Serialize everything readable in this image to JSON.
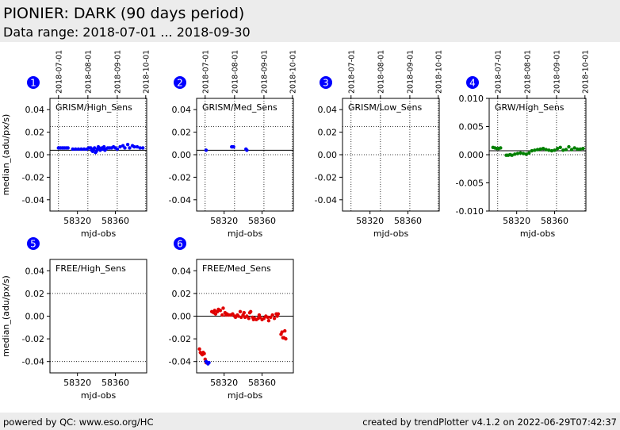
{
  "header": {
    "title": "PIONIER: DARK (90 days period)",
    "subtitle": "Data range: 2018-07-01 ... 2018-09-30"
  },
  "footer": {
    "left": "powered by QC: www.eso.org/HC",
    "right": "created by trendPlotter v4.1.2 on 2022-06-29T07:42:37"
  },
  "colors": {
    "blue": "#0000ff",
    "green": "#008000",
    "red": "#e00000",
    "badge": "#0000ff"
  },
  "chart_data": [
    {
      "id": 1,
      "type": "scatter",
      "label": "GRISM/High_Sens",
      "xlabel": "mjd-obs",
      "ylabel": "median_(adu/px/s)",
      "xlim": [
        58291,
        58393
      ],
      "ylim": [
        -0.05,
        0.05
      ],
      "yticks": [
        "0.04",
        "0.02",
        "0.00",
        "-0.02",
        "-0.04"
      ],
      "yticks_values": [
        0.04,
        0.02,
        0.0,
        -0.02,
        -0.04
      ],
      "xticks": [
        "58320",
        "58360"
      ],
      "xticks_values": [
        58320,
        58360
      ],
      "date_ticks": [
        "2018-07-01",
        "2018-08-01",
        "2018-09-01",
        "2018-10-01"
      ],
      "date_ticks_values": [
        58300,
        58331,
        58362,
        58392
      ],
      "ref_line": 0.004,
      "dotted_h": [
        0.025,
        0.0
      ],
      "series": [
        {
          "color": "blue",
          "points": [
            [
              58300,
              0.006
            ],
            [
              58302,
              0.006
            ],
            [
              58304,
              0.006
            ],
            [
              58306,
              0.006
            ],
            [
              58308,
              0.006
            ],
            [
              58310,
              0.006
            ],
            [
              58315,
              0.005
            ],
            [
              58318,
              0.005
            ],
            [
              58321,
              0.005
            ],
            [
              58324,
              0.005
            ],
            [
              58327,
              0.005
            ],
            [
              58330,
              0.005
            ],
            [
              58332,
              0.006
            ],
            [
              58334,
              0.006
            ],
            [
              58335,
              0.004
            ],
            [
              58336,
              0.003
            ],
            [
              58337,
              0.005
            ],
            [
              58338,
              0.006
            ],
            [
              58339,
              0.002
            ],
            [
              58340,
              0.003
            ],
            [
              58341,
              0.005
            ],
            [
              58342,
              0.007
            ],
            [
              58343,
              0.006
            ],
            [
              58344,
              0.004
            ],
            [
              58345,
              0.005
            ],
            [
              58346,
              0.006
            ],
            [
              58347,
              0.005
            ],
            [
              58348,
              0.007
            ],
            [
              58349,
              0.004
            ],
            [
              58350,
              0.005
            ],
            [
              58352,
              0.006
            ],
            [
              58354,
              0.006
            ],
            [
              58356,
              0.006
            ],
            [
              58358,
              0.007
            ],
            [
              58360,
              0.006
            ],
            [
              58362,
              0.005
            ],
            [
              58365,
              0.007
            ],
            [
              58368,
              0.008
            ],
            [
              58370,
              0.006
            ],
            [
              58373,
              0.009
            ],
            [
              58375,
              0.006
            ],
            [
              58378,
              0.008
            ],
            [
              58380,
              0.007
            ],
            [
              58383,
              0.007
            ],
            [
              58386,
              0.006
            ],
            [
              58389,
              0.006
            ]
          ]
        }
      ]
    },
    {
      "id": 2,
      "type": "scatter",
      "label": "GRISM/Med_Sens",
      "xlabel": "mjd-obs",
      "ylabel": "",
      "xlim": [
        58291,
        58393
      ],
      "ylim": [
        -0.05,
        0.05
      ],
      "yticks": [
        "0.04",
        "0.02",
        "0.00",
        "-0.02",
        "-0.04"
      ],
      "yticks_values": [
        0.04,
        0.02,
        0.0,
        -0.02,
        -0.04
      ],
      "xticks": [
        "58320",
        "58360"
      ],
      "xticks_values": [
        58320,
        58360
      ],
      "date_ticks": [
        "2018-07-01",
        "2018-08-01",
        "2018-09-01",
        "2018-10-01"
      ],
      "date_ticks_values": [
        58300,
        58331,
        58362,
        58392
      ],
      "ref_line": 0.004,
      "dotted_h": [
        0.025,
        0.0
      ],
      "series": [
        {
          "color": "blue",
          "points": [
            [
              58301,
              0.004
            ],
            [
              58328,
              0.007
            ],
            [
              58329,
              0.007
            ],
            [
              58330,
              0.007
            ],
            [
              58343,
              0.005
            ],
            [
              58344,
              0.004
            ]
          ]
        }
      ]
    },
    {
      "id": 3,
      "type": "scatter",
      "label": "GRISM/Low_Sens",
      "xlabel": "mjd-obs",
      "ylabel": "",
      "xlim": [
        58291,
        58393
      ],
      "ylim": [
        -0.05,
        0.05
      ],
      "yticks": [
        "0.04",
        "0.02",
        "0.00",
        "-0.02",
        "-0.04"
      ],
      "yticks_values": [
        0.04,
        0.02,
        0.0,
        -0.02,
        -0.04
      ],
      "xticks": [
        "58320",
        "58360"
      ],
      "xticks_values": [
        58320,
        58360
      ],
      "date_ticks": [
        "2018-07-01",
        "2018-08-01",
        "2018-09-01",
        "2018-10-01"
      ],
      "date_ticks_values": [
        58300,
        58331,
        58362,
        58392
      ],
      "ref_line": null,
      "dotted_h": [
        0.025,
        0.0
      ],
      "series": []
    },
    {
      "id": 4,
      "type": "scatter",
      "label": "GRW/High_Sens",
      "xlabel": "mjd-obs",
      "ylabel": "",
      "xlim": [
        58291,
        58393
      ],
      "ylim": [
        -0.01,
        0.01
      ],
      "yticks": [
        "0.010",
        "0.005",
        "0.000",
        "-0.005",
        "-0.010"
      ],
      "yticks_values": [
        0.01,
        0.005,
        0.0,
        -0.005,
        -0.01
      ],
      "xticks": [
        "58320",
        "58360"
      ],
      "xticks_values": [
        58320,
        58360
      ],
      "date_ticks": [
        "2018-07-01",
        "2018-08-01",
        "2018-09-01",
        "2018-10-01"
      ],
      "date_ticks_values": [
        58300,
        58331,
        58362,
        58392
      ],
      "ref_line": 0.0007,
      "dotted_h": [
        0.0
      ],
      "series": [
        {
          "color": "green",
          "points": [
            [
              58295,
              0.0013
            ],
            [
              58297,
              0.0012
            ],
            [
              58299,
              0.0011
            ],
            [
              58301,
              0.0011
            ],
            [
              58303,
              0.0012
            ],
            [
              58309,
              -0.0001
            ],
            [
              58311,
              -0.0001
            ],
            [
              58313,
              0.0
            ],
            [
              58315,
              -0.0001
            ],
            [
              58318,
              0.0001
            ],
            [
              58321,
              0.0002
            ],
            [
              58324,
              0.0003
            ],
            [
              58327,
              0.0002
            ],
            [
              58330,
              0.0001
            ],
            [
              58333,
              0.0003
            ],
            [
              58336,
              0.0007
            ],
            [
              58339,
              0.0008
            ],
            [
              58342,
              0.0009
            ],
            [
              58345,
              0.001
            ],
            [
              58348,
              0.0011
            ],
            [
              58351,
              0.0009
            ],
            [
              58354,
              0.0008
            ],
            [
              58357,
              0.0007
            ],
            [
              58360,
              0.0008
            ],
            [
              58363,
              0.0011
            ],
            [
              58366,
              0.0013
            ],
            [
              58369,
              0.0008
            ],
            [
              58372,
              0.0009
            ],
            [
              58375,
              0.0014
            ],
            [
              58378,
              0.0009
            ],
            [
              58381,
              0.0012
            ],
            [
              58384,
              0.001
            ],
            [
              58387,
              0.001
            ],
            [
              58390,
              0.0011
            ]
          ]
        }
      ]
    },
    {
      "id": 5,
      "type": "scatter",
      "label": "FREE/High_Sens",
      "xlabel": "mjd-obs",
      "ylabel": "median_(adu/px/s)",
      "xlim": [
        58291,
        58393
      ],
      "ylim": [
        -0.05,
        0.05
      ],
      "yticks": [
        "0.04",
        "0.02",
        "0.00",
        "-0.02",
        "-0.04"
      ],
      "yticks_values": [
        0.04,
        0.02,
        0.0,
        -0.02,
        -0.04
      ],
      "xticks": [
        "58320",
        "58360"
      ],
      "xticks_values": [
        58320,
        58360
      ],
      "date_ticks": [],
      "date_ticks_values": [],
      "ref_line": null,
      "dotted_h": [
        0.02,
        -0.04
      ],
      "series": []
    },
    {
      "id": 6,
      "type": "scatter",
      "label": "FREE/Med_Sens",
      "xlabel": "mjd-obs",
      "ylabel": "",
      "xlim": [
        58291,
        58393
      ],
      "ylim": [
        -0.05,
        0.05
      ],
      "yticks": [
        "0.04",
        "0.02",
        "0.00",
        "-0.02",
        "-0.04"
      ],
      "yticks_values": [
        0.04,
        0.02,
        0.0,
        -0.02,
        -0.04
      ],
      "xticks": [
        "58320",
        "58360"
      ],
      "xticks_values": [
        58320,
        58360
      ],
      "date_ticks": [],
      "date_ticks_values": [],
      "ref_line": 0.0,
      "dotted_h": [
        0.02,
        -0.04
      ],
      "series": [
        {
          "color": "red",
          "points": [
            [
              58294,
              -0.029
            ],
            [
              58295,
              -0.032
            ],
            [
              58296,
              -0.033
            ],
            [
              58297,
              -0.034
            ],
            [
              58298,
              -0.032
            ],
            [
              58299,
              -0.033
            ],
            [
              58300,
              -0.038
            ],
            [
              58301,
              -0.041
            ],
            [
              58307,
              0.004
            ],
            [
              58309,
              0.003
            ],
            [
              58310,
              0.005
            ],
            [
              58311,
              0.002
            ],
            [
              58313,
              0.004
            ],
            [
              58314,
              0.006
            ],
            [
              58316,
              0.005
            ],
            [
              58318,
              0.001
            ],
            [
              58319,
              0.007
            ],
            [
              58321,
              0.003
            ],
            [
              58322,
              0.001
            ],
            [
              58323,
              0.002
            ],
            [
              58325,
              0.001
            ],
            [
              58327,
              0.001
            ],
            [
              58329,
              0.002
            ],
            [
              58331,
              0.0
            ],
            [
              58332,
              -0.001
            ],
            [
              58334,
              0.001
            ],
            [
              58335,
              0.0
            ],
            [
              58337,
              0.004
            ],
            [
              58338,
              -0.001
            ],
            [
              58340,
              0.001
            ],
            [
              58341,
              0.003
            ],
            [
              58342,
              -0.001
            ],
            [
              58344,
              0.0
            ],
            [
              58346,
              -0.002
            ],
            [
              58347,
              0.003
            ],
            [
              58348,
              0.004
            ],
            [
              58350,
              -0.001
            ],
            [
              58351,
              -0.003
            ],
            [
              58352,
              -0.002
            ],
            [
              58354,
              -0.003
            ],
            [
              58356,
              -0.002
            ],
            [
              58357,
              0.001
            ],
            [
              58358,
              -0.001
            ],
            [
              58360,
              -0.003
            ],
            [
              58362,
              -0.002
            ],
            [
              58364,
              0.0
            ],
            [
              58366,
              -0.001
            ],
            [
              58367,
              -0.004
            ],
            [
              58369,
              -0.001
            ],
            [
              58371,
              0.001
            ],
            [
              58373,
              -0.002
            ],
            [
              58375,
              0.002
            ],
            [
              58376,
              0.0
            ],
            [
              58377,
              0.002
            ],
            [
              58380,
              -0.016
            ],
            [
              58381,
              -0.014
            ],
            [
              58382,
              -0.019
            ],
            [
              58383,
              -0.019
            ],
            [
              58384,
              -0.013
            ],
            [
              58385,
              -0.02
            ]
          ]
        },
        {
          "color": "blue",
          "points": [
            [
              58301,
              -0.04
            ],
            [
              58302,
              -0.041
            ],
            [
              58303,
              -0.042
            ],
            [
              58304,
              -0.041
            ]
          ]
        }
      ]
    }
  ]
}
